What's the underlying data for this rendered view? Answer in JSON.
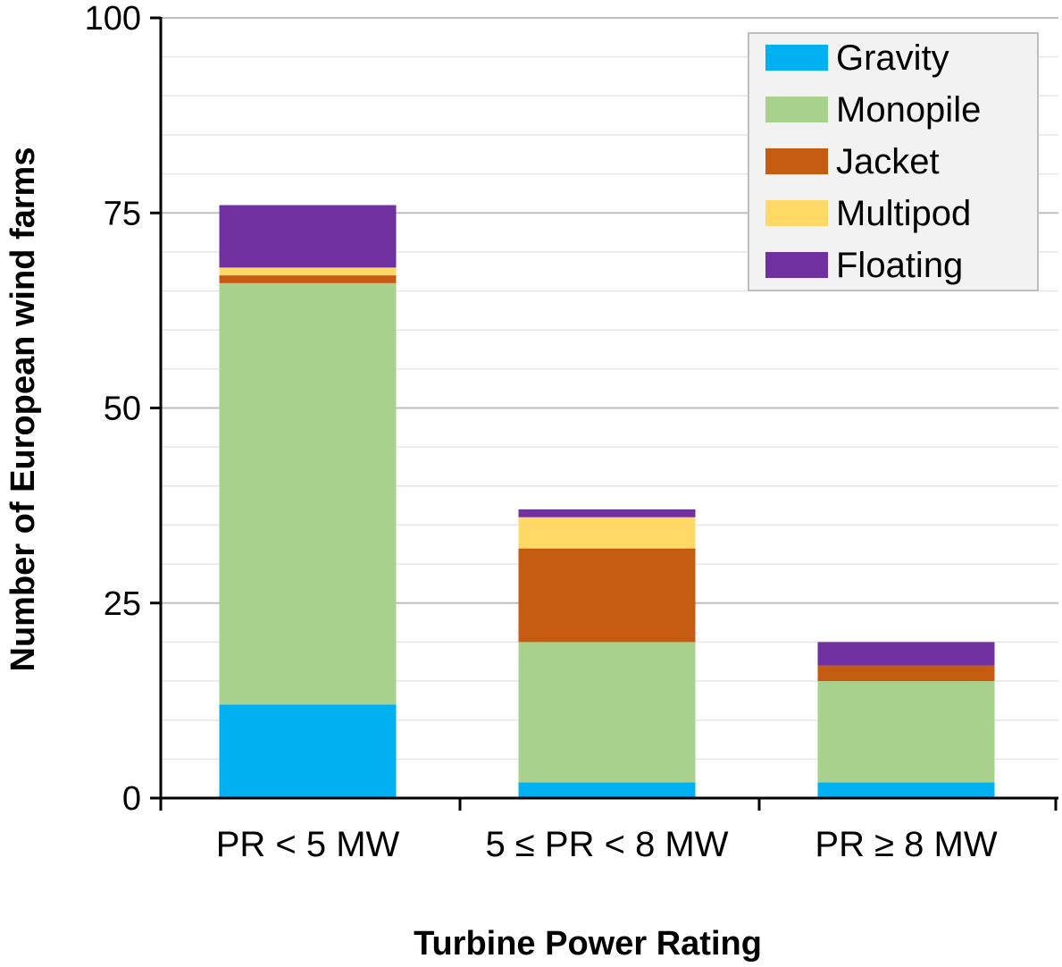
{
  "chart_data": {
    "type": "bar",
    "stacked": true,
    "title": "",
    "xlabel": "Turbine Power Rating",
    "ylabel": "Number of European wind farms",
    "ylim": [
      0,
      100
    ],
    "yticks": [
      0,
      25,
      50,
      75,
      100
    ],
    "minor_grid_step": 5,
    "grid": true,
    "legend_position": "top-right",
    "categories": [
      "PR < 5 MW",
      "5 ≤ PR < 8 MW",
      "PR ≥ 8 MW"
    ],
    "series": [
      {
        "name": "Gravity",
        "color": "#00b0f0",
        "values": [
          12,
          2,
          2
        ]
      },
      {
        "name": "Monopile",
        "color": "#a9d18e",
        "values": [
          54,
          18,
          13
        ]
      },
      {
        "name": "Jacket",
        "color": "#c55a11",
        "values": [
          1,
          12,
          2
        ]
      },
      {
        "name": "Multipod",
        "color": "#ffd966",
        "values": [
          1,
          4,
          0
        ]
      },
      {
        "name": "Floating",
        "color": "#7030a0",
        "values": [
          8,
          1,
          3
        ]
      }
    ]
  }
}
